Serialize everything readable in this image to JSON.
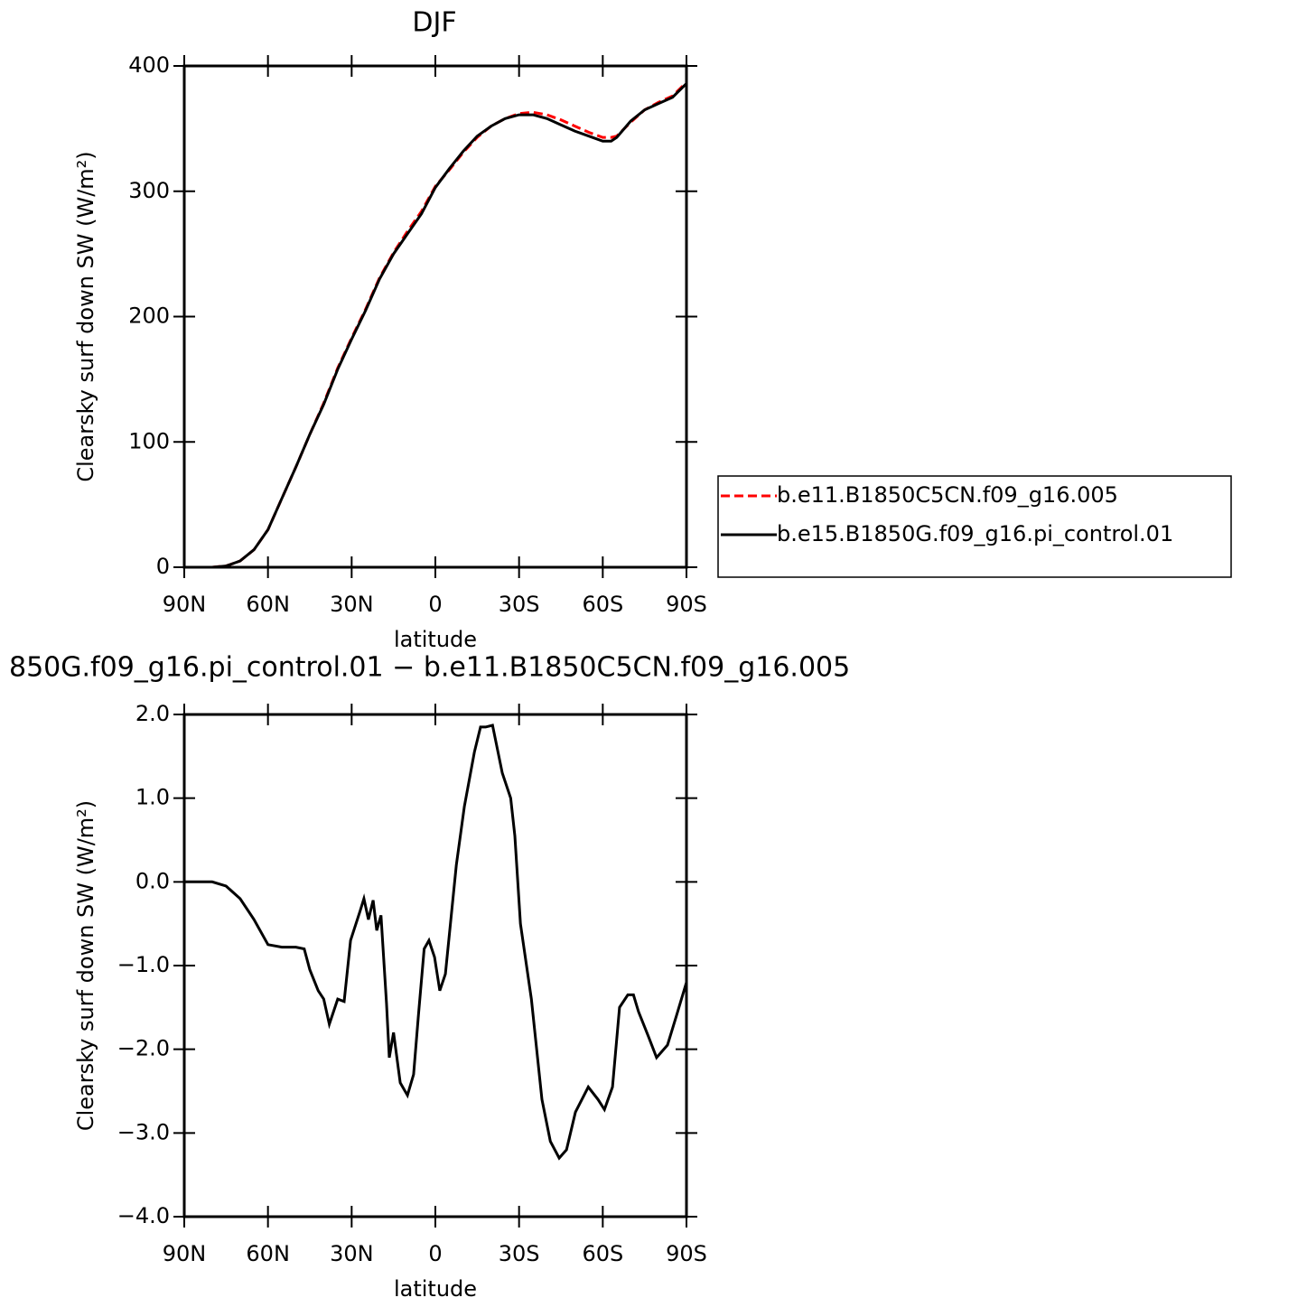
{
  "chart_data": [
    {
      "type": "line",
      "title": "DJF",
      "xlabel": "latitude",
      "ylabel": "Clearsky surf down SW (W/m²)",
      "xlim": [
        90,
        -90
      ],
      "xticks": [
        {
          "value": 90,
          "label": "90N"
        },
        {
          "value": 60,
          "label": "60N"
        },
        {
          "value": 30,
          "label": "30N"
        },
        0,
        {
          "value": -30,
          "label": "30S"
        },
        {
          "value": -60,
          "label": "60S"
        },
        {
          "value": -90,
          "label": "90S"
        }
      ],
      "ylim": [
        0,
        400
      ],
      "yticks": [
        0,
        100,
        200,
        300,
        400
      ],
      "legend": "right",
      "x": [
        90,
        80,
        75,
        70,
        65,
        60,
        55,
        50,
        45,
        40,
        35,
        30,
        25,
        20,
        15,
        10,
        5,
        0,
        -5,
        -10,
        -15,
        -20,
        -25,
        -30,
        -35,
        -40,
        -45,
        -50,
        -55,
        -60,
        -63,
        -65,
        -70,
        -75,
        -80,
        -85,
        -90
      ],
      "series": [
        {
          "name": "b.e11.B1850C5CN.f09_g16.005",
          "color": "#ff0000",
          "dash": true,
          "values": [
            0,
            0,
            1,
            5,
            14,
            30,
            55,
            80,
            106,
            131,
            159,
            183,
            206,
            231,
            251,
            268,
            284,
            304,
            317,
            331,
            343,
            352,
            358,
            362,
            363,
            361,
            357,
            352,
            347,
            343,
            343,
            344,
            355,
            365,
            371,
            376,
            387
          ]
        },
        {
          "name": "b.e15.B1850G.f09_g16.pi_control.01",
          "color": "#000000",
          "dash": false,
          "values": [
            0,
            0,
            1,
            5,
            14,
            30,
            55,
            80,
            106,
            130,
            158,
            182,
            205,
            230,
            250,
            266,
            282,
            303,
            318,
            332,
            344,
            352,
            358,
            361,
            361,
            358,
            353,
            348,
            344,
            340,
            340,
            343,
            356,
            365,
            370,
            375,
            386
          ]
        }
      ]
    },
    {
      "type": "line",
      "title": "850G.f09_g16.pi_control.01 − b.e11.B1850C5CN.f09_g16.005",
      "xlabel": "latitude",
      "ylabel": "Clearsky surf down SW (W/m²)",
      "xlim": [
        90,
        -90
      ],
      "xticks": [
        {
          "value": 90,
          "label": "90N"
        },
        {
          "value": 60,
          "label": "60N"
        },
        {
          "value": 30,
          "label": "30N"
        },
        0,
        {
          "value": -30,
          "label": "30S"
        },
        {
          "value": -60,
          "label": "60S"
        },
        {
          "value": -90,
          "label": "90S"
        }
      ],
      "ylim": [
        -4,
        2
      ],
      "yticks": [
        {
          "value": -4,
          "label": "−4.0"
        },
        {
          "value": -3,
          "label": "−3.0"
        },
        {
          "value": -2,
          "label": "−2.0"
        },
        {
          "value": -1,
          "label": "−1.0"
        },
        {
          "value": 0,
          "label": "0.0"
        },
        {
          "value": 1,
          "label": "1.0"
        },
        {
          "value": 2,
          "label": "2.0"
        }
      ],
      "x": [
        90,
        80,
        75,
        70,
        65,
        60,
        55,
        50,
        47,
        45,
        42,
        40,
        38,
        35,
        32.7,
        30.4,
        27,
        25.6,
        24,
        22.3,
        21,
        19.5,
        17.5,
        16.5,
        15,
        12.6,
        10,
        7.8,
        6.1,
        4,
        2.3,
        0.3,
        -1.6,
        -3.6,
        -7.5,
        -10.4,
        -14,
        -16.2,
        -18,
        -20.5,
        -24,
        -27,
        -28.5,
        -30.5,
        -34.4,
        -38.2,
        -41.2,
        -44.4,
        -47,
        -50.2,
        -54.8,
        -58.3,
        -60.6,
        -63.5,
        -66,
        -69,
        -71,
        -72.8,
        -76.4,
        -79.3,
        -83.2,
        -86.4,
        -90
      ],
      "series": [
        {
          "name": null,
          "color": "#000000",
          "dash": false,
          "values": [
            0,
            0,
            -0.05,
            -0.2,
            -0.45,
            -0.75,
            -0.78,
            -0.78,
            -0.8,
            -1.05,
            -1.3,
            -1.4,
            -1.7,
            -1.4,
            -1.43,
            -0.7,
            -0.35,
            -0.2,
            -0.45,
            -0.22,
            -0.58,
            -0.4,
            -1.45,
            -2.1,
            -1.8,
            -2.4,
            -2.55,
            -2.3,
            -1.6,
            -0.8,
            -0.7,
            -0.9,
            -1.3,
            -1.1,
            0.2,
            0.9,
            1.55,
            1.85,
            1.85,
            1.87,
            1.3,
            1.0,
            0.55,
            -0.5,
            -1.4,
            -2.6,
            -3.1,
            -3.3,
            -3.2,
            -2.75,
            -2.45,
            -2.6,
            -2.72,
            -2.45,
            -1.5,
            -1.35,
            -1.35,
            -1.55,
            -1.85,
            -2.1,
            -1.95,
            -1.6,
            -1.2
          ]
        }
      ]
    }
  ]
}
